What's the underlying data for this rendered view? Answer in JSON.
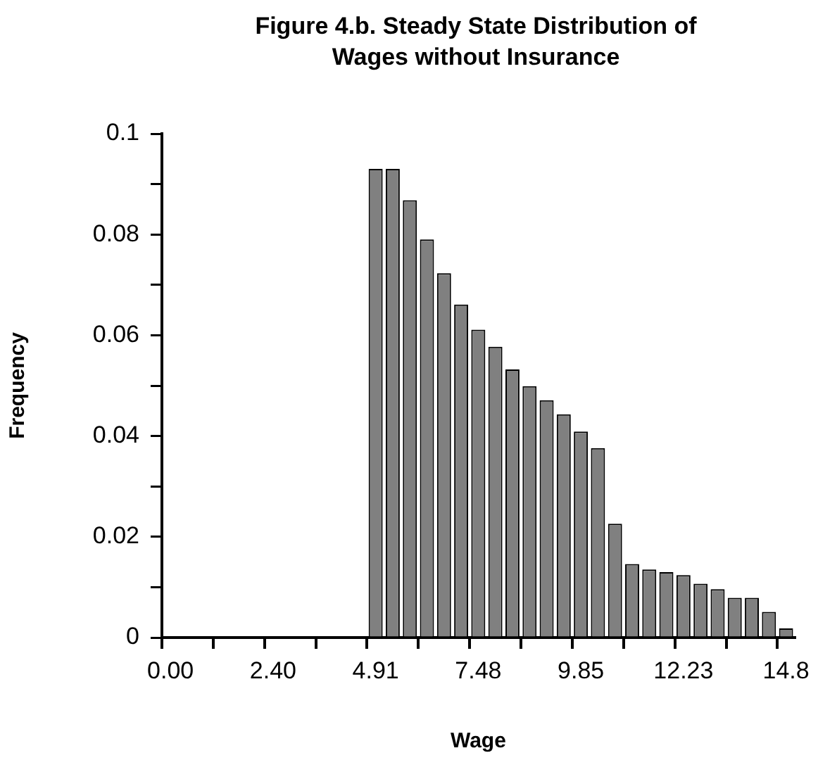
{
  "chart_data": {
    "type": "bar",
    "title": "Figure 4.b. Steady State Distribution of Wages without Insurance",
    "xlabel": "Wage",
    "ylabel": "Frequency",
    "categories": [
      "0.00",
      null,
      null,
      null,
      null,
      null,
      "2.40",
      null,
      null,
      null,
      null,
      null,
      "4.91",
      null,
      null,
      null,
      null,
      null,
      "7.48",
      null,
      null,
      null,
      null,
      null,
      "9.85",
      null,
      null,
      null,
      null,
      null,
      "12.23",
      null,
      null,
      null,
      null,
      null,
      "14.8"
    ],
    "values": [
      null,
      null,
      null,
      null,
      null,
      null,
      null,
      null,
      null,
      null,
      null,
      null,
      0.093,
      0.093,
      0.0868,
      0.079,
      0.0723,
      0.0661,
      0.0611,
      0.0577,
      0.0532,
      0.0499,
      0.0471,
      0.0443,
      0.0409,
      0.0376,
      0.0226,
      0.0146,
      0.0135,
      0.013,
      0.0124,
      0.0107,
      0.0096,
      0.0079,
      0.0079,
      0.0051,
      0.0018
    ],
    "color": "#808080",
    "ylim": [
      0,
      0.1
    ],
    "yticks": [
      0,
      {
        "value": 0.01,
        "label": null
      },
      0.02,
      {
        "value": 0.03,
        "label": null
      },
      0.04,
      {
        "value": 0.05,
        "label": null
      },
      0.06,
      {
        "value": 0.07,
        "label": null
      },
      0.08,
      {
        "value": 0.09,
        "label": null
      },
      0.1
    ],
    "grid": false,
    "legend": false
  }
}
